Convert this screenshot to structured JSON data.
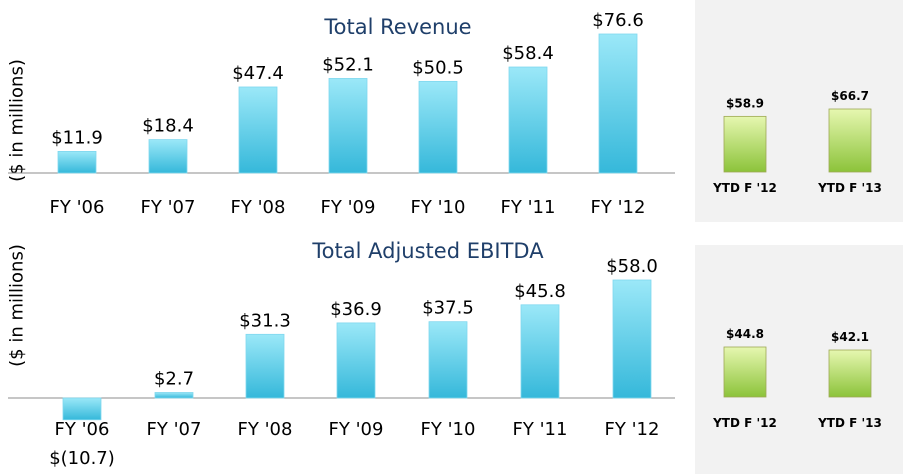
{
  "colors": {
    "main_bar_top": "#9be8f8",
    "main_bar_bottom": "#35b8da",
    "ytd_bar_top": "#e6f7b0",
    "ytd_bar_bottom": "#8cc33a",
    "title": "#1f3f6a",
    "panel_bg": "#f2f2f2"
  },
  "chart_data": [
    {
      "type": "bar",
      "title": "Total Revenue",
      "ylabel": "($ in millions)",
      "categories": [
        "FY '06",
        "FY '07",
        "FY '08",
        "FY '09",
        "FY '10",
        "FY '11",
        "FY '12"
      ],
      "values": [
        11.9,
        18.4,
        47.4,
        52.1,
        50.5,
        58.4,
        76.6
      ],
      "value_labels": [
        "$11.9",
        "$18.4",
        "$47.4",
        "$52.1",
        "$50.5",
        "$58.4",
        "$76.6"
      ]
    },
    {
      "type": "bar",
      "categories": [
        "YTD F '12",
        "YTD F '13"
      ],
      "values": [
        58.9,
        66.7
      ],
      "value_labels": [
        "$58.9",
        "$66.7"
      ]
    },
    {
      "type": "bar",
      "title": "Total Adjusted EBITDA",
      "ylabel": "($ in millions)",
      "categories": [
        "FY '06",
        "FY '07",
        "FY '08",
        "FY '09",
        "FY '10",
        "FY '11",
        "FY '12"
      ],
      "values": [
        -10.7,
        2.7,
        31.3,
        36.9,
        37.5,
        45.8,
        58.0
      ],
      "value_labels": [
        "$(10.7)",
        "$2.7",
        "$31.3",
        "$36.9",
        "$37.5",
        "$45.8",
        "$58.0"
      ]
    },
    {
      "type": "bar",
      "categories": [
        "YTD F '12",
        "YTD F '13"
      ],
      "values": [
        44.8,
        42.1
      ],
      "value_labels": [
        "$44.8",
        "$42.1"
      ]
    }
  ]
}
